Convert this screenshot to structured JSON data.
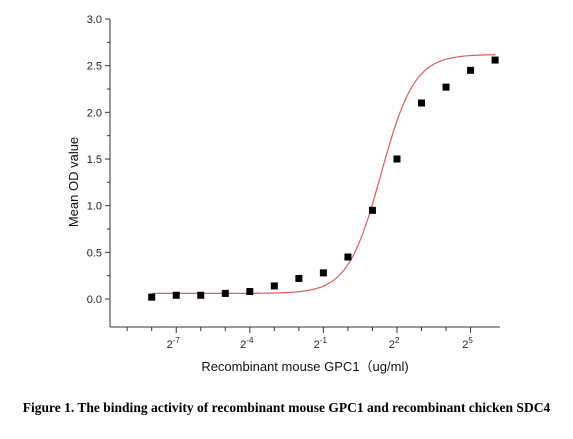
{
  "chart_data": {
    "type": "scatter",
    "xlabel": "Recombinant mouse GPC1（ug/ml)",
    "ylabel": "Mean OD value",
    "x_scale": "log2",
    "xlim": [
      -9.7,
      6.2
    ],
    "ylim": [
      -0.3,
      3.0
    ],
    "x_ticks": [
      {
        "value": -7,
        "base": "2",
        "exp": "-7"
      },
      {
        "value": -4,
        "base": "2",
        "exp": "-4"
      },
      {
        "value": -1,
        "base": "2",
        "exp": "-1"
      },
      {
        "value": 2,
        "base": "2",
        "exp": "2"
      },
      {
        "value": 5,
        "base": "2",
        "exp": "5"
      }
    ],
    "x_minor_ticks": [
      -9,
      -8,
      -6,
      -5,
      -3,
      -2,
      0,
      1,
      3,
      4
    ],
    "y_ticks": [
      "0.0",
      "0.5",
      "1.0",
      "1.5",
      "2.0",
      "2.5",
      "3.0"
    ],
    "series": [
      {
        "marker": "square",
        "color": "#000000",
        "x": [
          -8.0,
          -7.0,
          -6.0,
          -5.0,
          -4.0,
          -3.0,
          -2.0,
          -1.0,
          0.0,
          1.0,
          2.0,
          3.0,
          4.0,
          5.0,
          6.0
        ],
        "y": [
          0.02,
          0.04,
          0.04,
          0.06,
          0.08,
          0.14,
          0.22,
          0.28,
          0.45,
          0.95,
          1.5,
          2.1,
          2.27,
          2.45,
          2.56
        ]
      }
    ],
    "fit_curve": {
      "color": "#e05a5a",
      "model": "4PL",
      "bottom": 0.06,
      "top": 2.62,
      "midpoint_log2": 1.35,
      "hill_slope_log2": 0.68
    },
    "grid": false,
    "legend": "none"
  },
  "caption": "Figure 1. The binding activity of recombinant mouse GPC1 and recombinant chicken SDC4"
}
